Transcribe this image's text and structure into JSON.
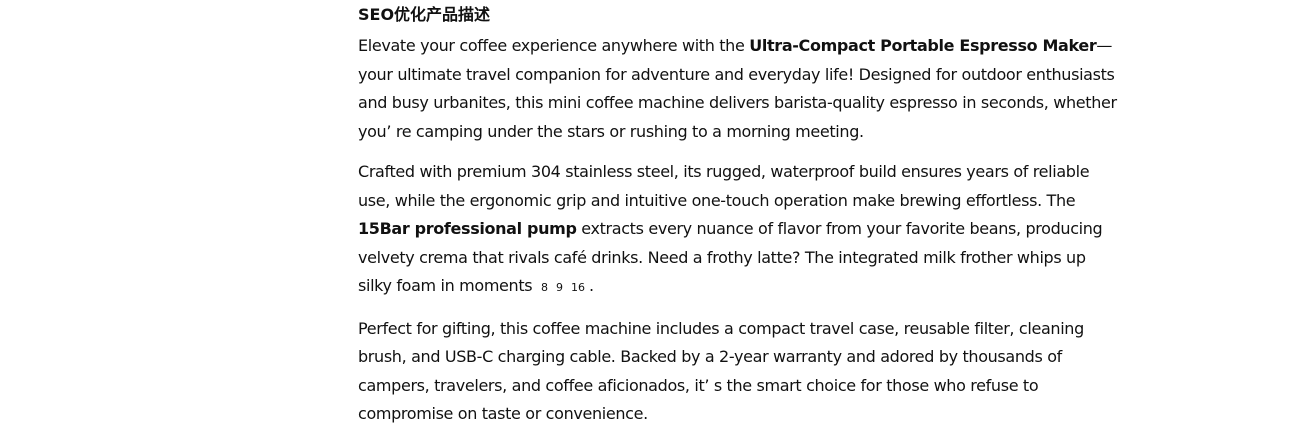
{
  "heading": "SEO优化产品描述",
  "paragraphs": [
    {
      "lines": [
        [
          {
            "text": "Elevate your coffee experience anywhere with the "
          },
          {
            "text": "Ultra-Compact Portable Espresso Maker",
            "bold": true
          },
          {
            "text": "—"
          }
        ],
        [
          {
            "text": "your ultimate travel companion for adventure and everyday life! Designed for outdoor enthusiasts"
          }
        ],
        [
          {
            "text": "and busy urbanites, this mini coffee machine delivers barista-quality espresso in seconds, whether"
          }
        ],
        [
          {
            "text": "you’  re camping under the stars or rushing to a morning meeting."
          }
        ]
      ]
    },
    {
      "lines": [
        [
          {
            "text": "Crafted with premium 304 stainless steel, its rugged, waterproof build ensures years of reliable"
          }
        ],
        [
          {
            "text": "use, while the ergonomic grip and intuitive one-touch operation make brewing effortless. The"
          }
        ],
        [
          {
            "text": "15Bar professional pump",
            "bold": true
          },
          {
            "text": " extracts every nuance of flavor from your favorite beans, producing"
          }
        ],
        [
          {
            "text": "velvety crema that rivals café drinks. Need a frothy latte? The integrated milk frother whips up"
          }
        ],
        [
          {
            "text": "silky foam in moments "
          },
          {
            "text": "8",
            "cite": true
          },
          {
            "text": "9",
            "cite": true
          },
          {
            "text": "16",
            "cite": true
          },
          {
            "text": "."
          }
        ]
      ]
    },
    {
      "lines": [
        [
          {
            "text": "Perfect for gifting, this coffee machine includes a compact travel case, reusable filter, cleaning"
          }
        ],
        [
          {
            "text": "brush, and USB-C charging cable. Backed by a 2-year warranty and adored by thousands of"
          }
        ],
        [
          {
            "text": "campers, travelers, and coffee aficionados, it’  s the smart choice for those who refuse to"
          }
        ],
        [
          {
            "text": "compromise on taste or convenience."
          }
        ]
      ]
    }
  ]
}
